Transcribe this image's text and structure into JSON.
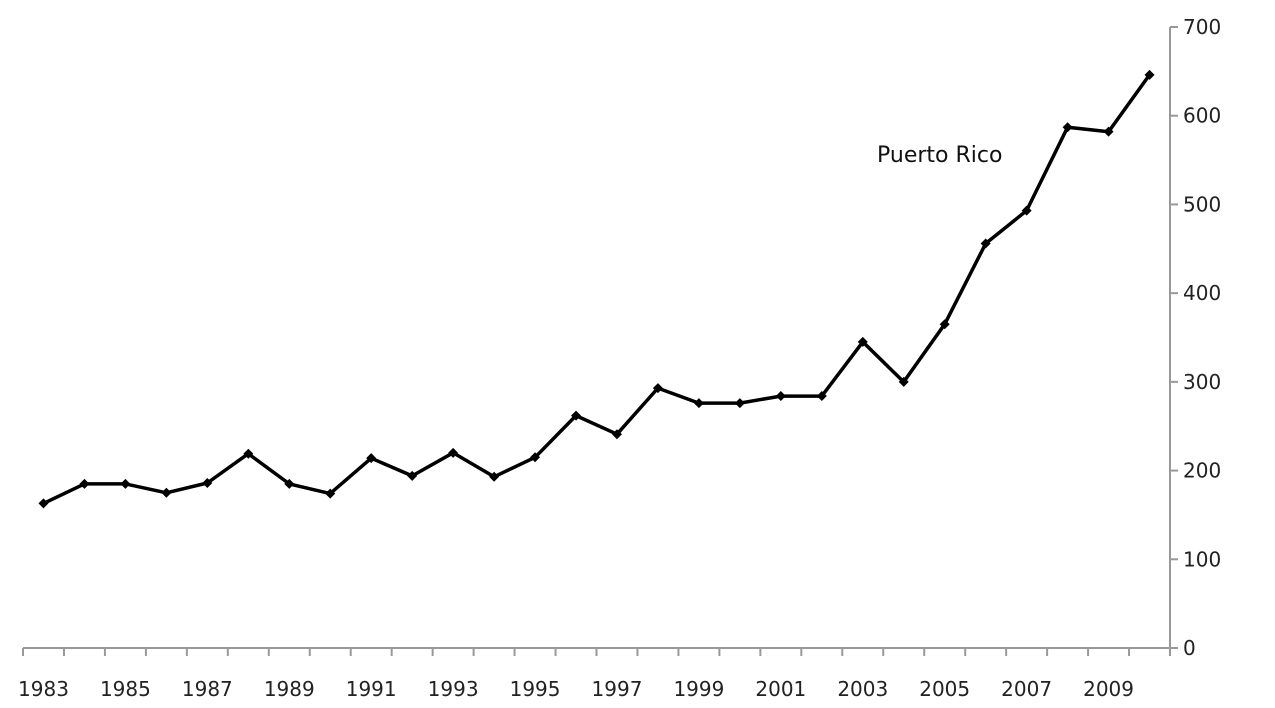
{
  "chart_data": {
    "type": "line",
    "x": [
      1983,
      1984,
      1985,
      1986,
      1987,
      1988,
      1989,
      1990,
      1991,
      1992,
      1993,
      1994,
      1995,
      1996,
      1997,
      1998,
      1999,
      2000,
      2001,
      2002,
      2003,
      2004,
      2005,
      2006,
      2007,
      2008,
      2009,
      2010
    ],
    "series": [
      {
        "name": "Puerto Rico",
        "values": [
          163,
          185,
          185,
          175,
          186,
          219,
          185,
          174,
          214,
          194,
          220,
          193,
          215,
          262,
          241,
          293,
          276,
          276,
          284,
          284,
          345,
          300,
          365,
          456,
          493,
          587,
          582,
          646
        ],
        "color": "#000000"
      }
    ],
    "x_tick_labels": [
      "1983",
      "1985",
      "1987",
      "1989",
      "1991",
      "1993",
      "1995",
      "1997",
      "1999",
      "2001",
      "2003",
      "2005",
      "2007",
      "2009"
    ],
    "y_tick_labels": [
      "0",
      "100",
      "200",
      "300",
      "400",
      "500",
      "600",
      "700"
    ],
    "ylim": [
      0,
      700
    ],
    "y_axis_side": "right",
    "grid": false,
    "legend": "none",
    "title": "",
    "xlabel": "",
    "ylabel": ""
  }
}
